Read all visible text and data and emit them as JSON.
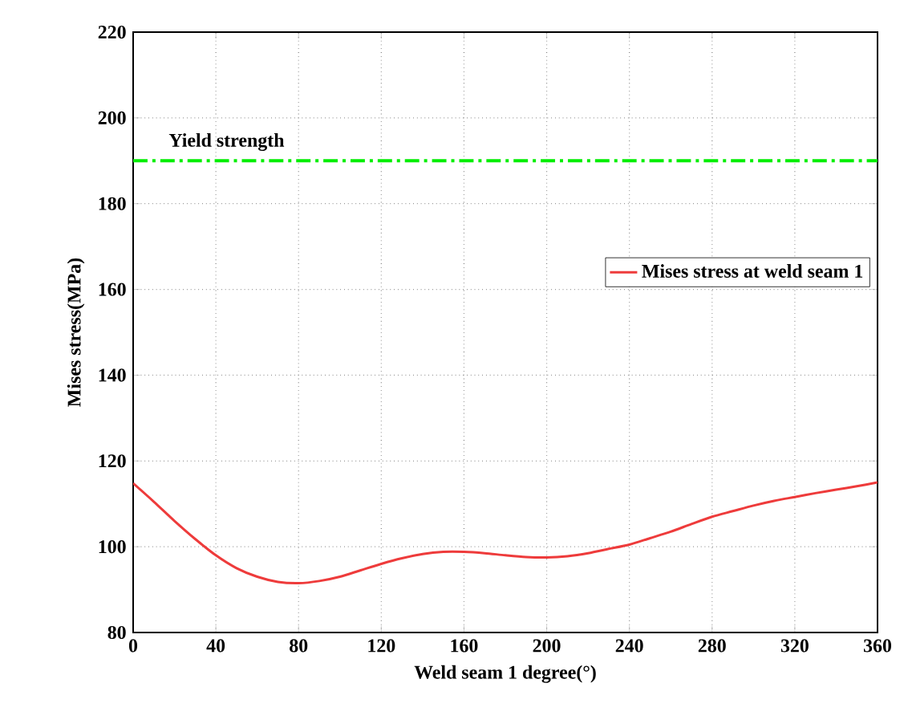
{
  "chart_data": {
    "type": "line",
    "xlabel": "Weld seam 1 degree(°)",
    "ylabel": "Mises stress(MPa)",
    "x": [
      0,
      10,
      20,
      30,
      40,
      50,
      60,
      70,
      80,
      90,
      100,
      110,
      120,
      130,
      140,
      150,
      160,
      170,
      180,
      190,
      200,
      210,
      220,
      230,
      240,
      250,
      260,
      270,
      280,
      290,
      300,
      310,
      320,
      330,
      340,
      350,
      360
    ],
    "series": [
      {
        "name": "Mises stress at weld seam 1",
        "color": "#ee3b3b",
        "values": [
          114.8,
          110.5,
          106,
          101.8,
          98,
          95,
          93,
          91.8,
          91.5,
          92,
          93,
          94.5,
          96,
          97.3,
          98.3,
          98.8,
          98.8,
          98.5,
          98,
          97.6,
          97.5,
          97.8,
          98.5,
          99.5,
          100.5,
          102,
          103.5,
          105.3,
          107,
          108.3,
          109.6,
          110.7,
          111.6,
          112.5,
          113.3,
          114.1,
          115
        ]
      }
    ],
    "ref_lines": [
      {
        "axis": "y",
        "value": 190,
        "label": "Yield strength",
        "color": "#00ee00",
        "line_style": "dashdot"
      }
    ],
    "xlim": [
      0,
      360
    ],
    "ylim": [
      80,
      220
    ],
    "xticks": [
      0,
      40,
      80,
      120,
      160,
      200,
      240,
      280,
      320,
      360
    ],
    "yticks": [
      80,
      100,
      120,
      140,
      160,
      180,
      200,
      220
    ],
    "grid": true,
    "legend": "right",
    "line_style": "solid",
    "marker": "none"
  }
}
